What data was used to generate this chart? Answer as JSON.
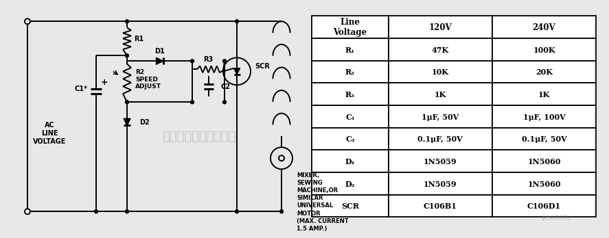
{
  "table_headers": [
    "Line\nVoltage",
    "120V",
    "240V"
  ],
  "table_rows": [
    [
      "R₁",
      "47K",
      "100K"
    ],
    [
      "R₂",
      "10K",
      "20K"
    ],
    [
      "R₃",
      "1K",
      "1K"
    ],
    [
      "C₁",
      "1μF, 50V",
      "1μF, 100V"
    ],
    [
      "C₂",
      "0.1μF, 50V",
      "0.1μF, 50V"
    ],
    [
      "D₁",
      "1N5059",
      "1N5060"
    ],
    [
      "D₂",
      "1N5059",
      "1N5060"
    ],
    [
      "SCR",
      "C106B1",
      "C106D1"
    ]
  ],
  "circuit_labels": {
    "ac_line": "AC\nLINE\nVOLTAGE",
    "r1": "R1",
    "r2": "R2\nSPEED\nADJUST",
    "r3": "R3",
    "c1": "C1*",
    "c2": "C2",
    "d1": "D1",
    "d2": "D2",
    "scr": "SCR",
    "motor": "MIXER,\nSEWING\nMACHINE,OR\nSIMILAR\nUNIVERSAL\nMOTOR\n(MAX. CURRENT\n1.5 AMP.)"
  },
  "bg_color": "#e8e8e8",
  "line_color": "#000000",
  "table_bg": "#ffffff",
  "watermark": "杭州将睫科技有限公司"
}
